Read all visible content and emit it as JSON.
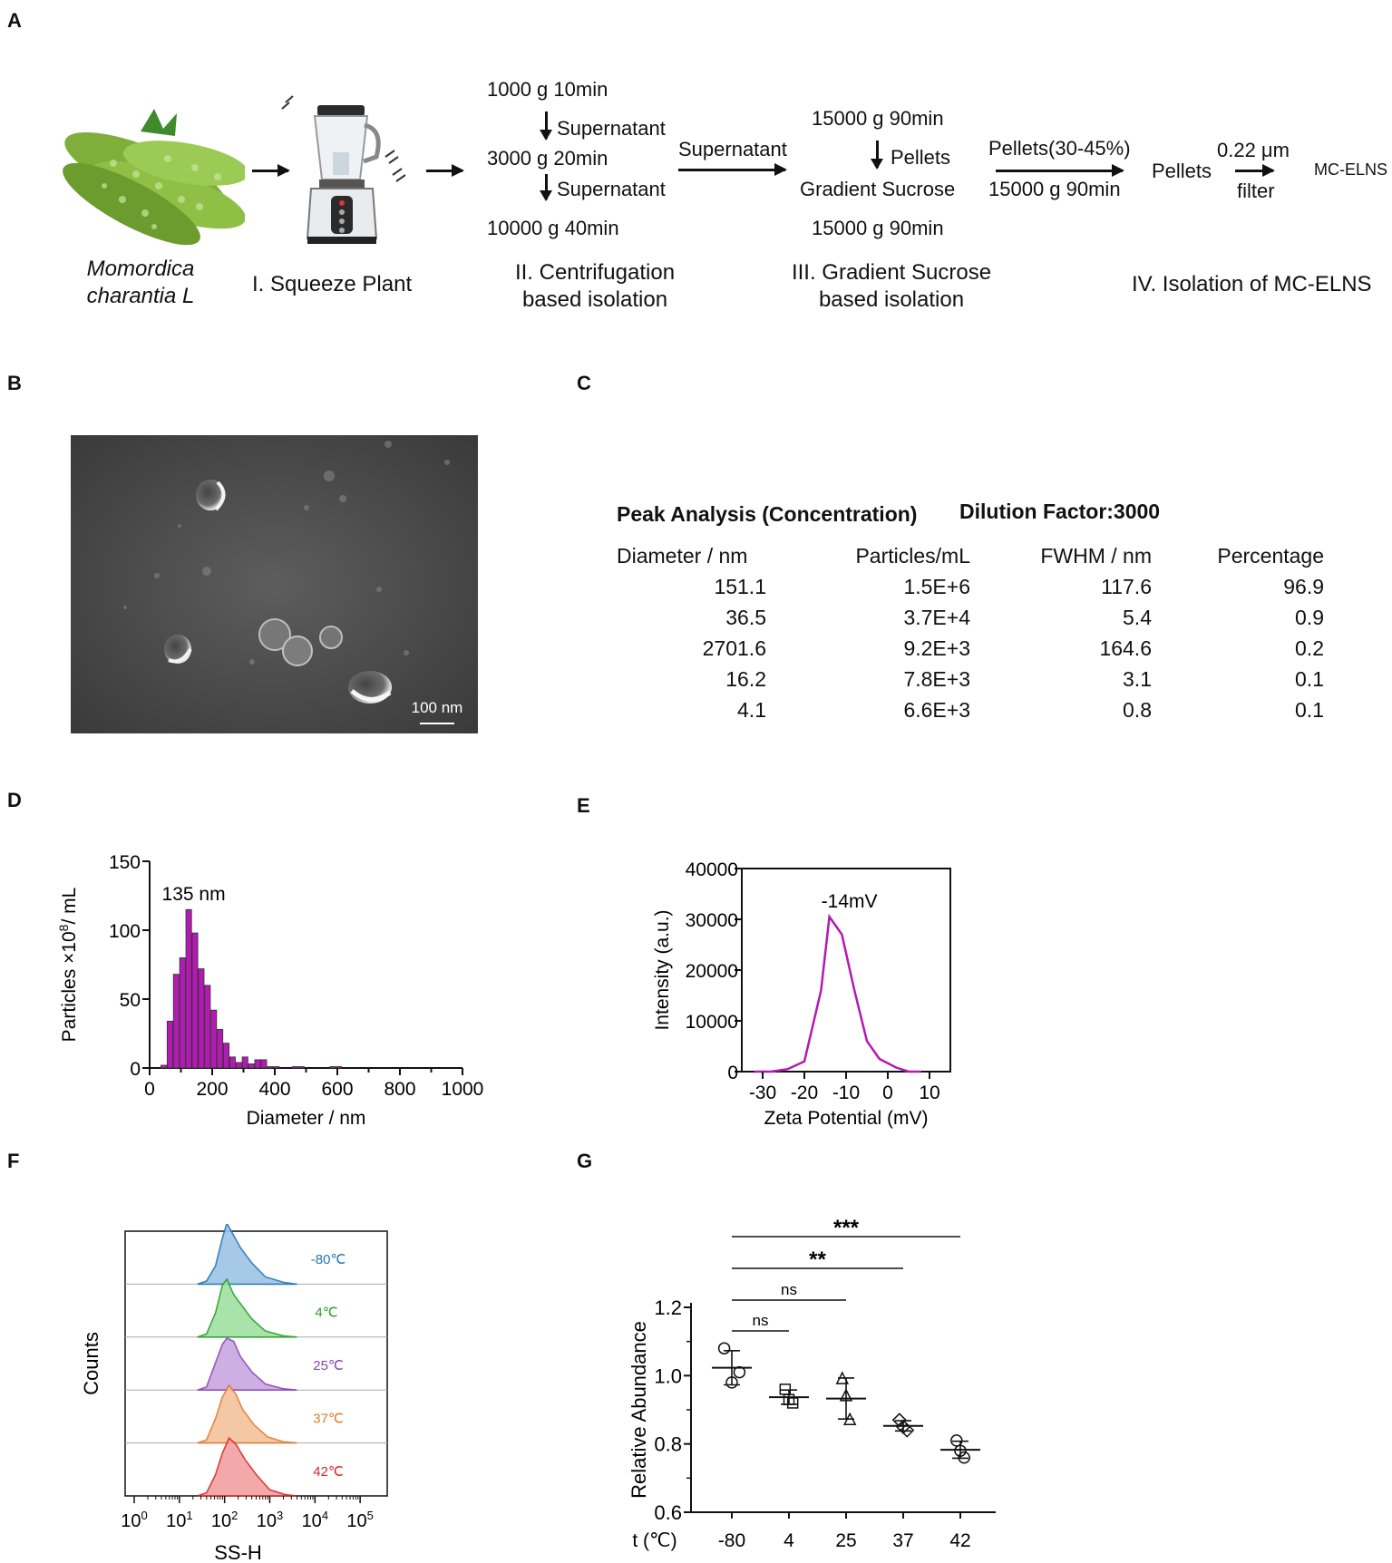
{
  "panels": {
    "a": "A",
    "b": "B",
    "c": "C",
    "d": "D",
    "e": "E",
    "f": "F",
    "g": "G"
  },
  "workflow": {
    "plant_name_line1": "Momordica",
    "plant_name_line2": "charantia L",
    "step1_label": "I. Squeeze Plant",
    "centrifuge": {
      "spin1": "1000 g 10min",
      "sup1": "Supernatant",
      "spin2": "3000 g 20min",
      "sup2": "Supernatant",
      "spin3": "10000 g 40min"
    },
    "step2_label_line1": "II. Centrifugation",
    "step2_label_line2": "based isolation",
    "transfer_label": "Supernatant",
    "sucrose": {
      "spin1": "15000 g 90min",
      "pellets": "Pellets",
      "gradient": "Gradient Sucrose",
      "spin2": "15000 g 90min"
    },
    "step3_label_line1": "III. Gradient Sucrose",
    "step3_label_line2": "based isolation",
    "pellets_fraction": "Pellets(30-45%)",
    "pellets_spin": "15000 g 90min",
    "pellets": "Pellets",
    "filter_size": "0.22 μm",
    "filter": "filter",
    "product": "MC-ELNS",
    "step4_label": "IV. Isolation of MC-ELNS"
  },
  "tem": {
    "scale_bar": "100 nm"
  },
  "peak_table": {
    "title": "Peak Analysis (Concentration)",
    "dilution": "Dilution Factor:3000",
    "headers": [
      "Diameter / nm",
      "Particles/mL",
      "FWHM / nm",
      "Percentage"
    ],
    "rows": [
      [
        "151.1",
        "1.5E+6",
        "117.6",
        "96.9"
      ],
      [
        "36.5",
        "3.7E+4",
        "5.4",
        "0.9"
      ],
      [
        "2701.6",
        "9.2E+3",
        "164.6",
        "0.2"
      ],
      [
        "16.2",
        "7.8E+3",
        "3.1",
        "0.1"
      ],
      [
        "4.1",
        "6.6E+3",
        "0.8",
        "0.1"
      ]
    ]
  },
  "chart_data": [
    {
      "id": "D",
      "type": "bar",
      "x_bin_centers": [
        45,
        65,
        85,
        105,
        125,
        145,
        165,
        185,
        205,
        225,
        245,
        265,
        285,
        305,
        325,
        345,
        365,
        385,
        405,
        425,
        445,
        465,
        485,
        505,
        525,
        545,
        565,
        585,
        605
      ],
      "values": [
        2,
        34,
        68,
        80,
        115,
        98,
        72,
        60,
        42,
        28,
        18,
        8,
        4,
        8,
        3,
        6,
        6,
        1,
        1,
        0,
        0,
        1,
        1,
        0,
        0,
        0,
        0,
        1,
        1
      ],
      "annotation": "135 nm",
      "xlabel": "Diameter / nm",
      "ylabel": "Particles ×10",
      "ylabel_sup": "8",
      "ylabel_suffix": "/ mL",
      "xlim": [
        0,
        1000
      ],
      "ylim": [
        0,
        150
      ],
      "xticks": [
        "0",
        "200",
        "400",
        "600",
        "800",
        "1000"
      ],
      "yticks": [
        "0",
        "50",
        "100",
        "150"
      ],
      "color": "#b31ab3"
    },
    {
      "id": "E",
      "type": "line",
      "x": [
        -32,
        -28,
        -24,
        -20,
        -16,
        -14,
        -11,
        -8,
        -5,
        -2,
        2,
        5,
        8
      ],
      "y": [
        0,
        0,
        500,
        2000,
        16000,
        30500,
        27000,
        16000,
        6000,
        2500,
        800,
        0,
        0
      ],
      "annotation": "-14mV",
      "xlabel": "Zeta Potential (mV)",
      "ylabel": "Intensity (a.u.)",
      "xlim": [
        -35,
        15
      ],
      "ylim": [
        0,
        40000
      ],
      "xticks": [
        "-30",
        "-20",
        "-10",
        "0",
        "10"
      ],
      "yticks": [
        "0",
        "10000",
        "20000",
        "30000",
        "40000"
      ],
      "color": "#b31ab3"
    },
    {
      "id": "F",
      "type": "area",
      "series": [
        {
          "name": "-80℃",
          "color": "#1f77b4",
          "fill": "#9ec4e6"
        },
        {
          "name": "4℃",
          "color": "#2ca02c",
          "fill": "#9fe0a0"
        },
        {
          "name": "25℃",
          "color": "#8a45b3",
          "fill": "#c9a6e0"
        },
        {
          "name": "37℃",
          "color": "#e07b2a",
          "fill": "#f4c39c"
        },
        {
          "name": "42℃",
          "color": "#d62728",
          "fill": "#f2a0a0"
        }
      ],
      "xlabel": "SS-H",
      "ylabel": "Counts",
      "xticks": [
        "10",
        "10",
        "10",
        "10",
        "10",
        "10"
      ],
      "xtick_exponents": [
        "0",
        "1",
        "2",
        "3",
        "4",
        "5"
      ]
    },
    {
      "id": "G",
      "type": "scatter",
      "categories": [
        "-80",
        "4",
        "25",
        "37",
        "42"
      ],
      "points": [
        [
          1.08,
          0.98,
          1.01
        ],
        [
          0.96,
          0.93,
          0.92
        ],
        [
          0.99,
          0.94,
          0.87
        ],
        [
          0.87,
          0.85,
          0.84
        ],
        [
          0.81,
          0.78,
          0.76
        ]
      ],
      "means": [
        1.023,
        0.937,
        0.933,
        0.853,
        0.783
      ],
      "sd": [
        0.05,
        0.021,
        0.06,
        0.015,
        0.025
      ],
      "markers": [
        "circle",
        "square",
        "triangle",
        "diamond",
        "circle-dot"
      ],
      "ylabel": "Relative Abundance",
      "xlabel": "t (℃)",
      "ylim": [
        0.6,
        1.2
      ],
      "yticks": [
        "0.6",
        "0.8",
        "1.0",
        "1.2"
      ],
      "significance": [
        {
          "from": 0,
          "to": 4,
          "label": "***"
        },
        {
          "from": 0,
          "to": 3,
          "label": "**"
        },
        {
          "from": 0,
          "to": 2,
          "label": "ns"
        },
        {
          "from": 0,
          "to": 1,
          "label": "ns"
        }
      ]
    }
  ]
}
